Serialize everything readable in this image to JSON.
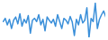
{
  "chart_data": {
    "type": "line",
    "color": "#3a8fd9",
    "x": [
      1,
      2,
      3,
      4,
      5,
      6,
      7,
      8,
      9,
      10,
      11,
      12,
      13,
      14,
      15,
      16,
      17,
      18,
      19,
      20,
      21,
      22,
      23,
      24,
      25,
      26,
      27,
      28,
      29,
      30,
      31,
      32,
      33,
      34,
      35,
      36,
      37,
      38,
      39,
      40,
      41,
      42,
      43,
      44,
      45,
      46,
      47,
      48,
      49,
      50
    ],
    "values": [
      55,
      62,
      48,
      60,
      40,
      58,
      65,
      50,
      72,
      45,
      60,
      52,
      68,
      30,
      58,
      62,
      55,
      70,
      48,
      60,
      35,
      65,
      58,
      52,
      60,
      45,
      70,
      55,
      40,
      62,
      58,
      50,
      66,
      54,
      25,
      60,
      48,
      70,
      52,
      58,
      85,
      20,
      62,
      55,
      95,
      40,
      60,
      70,
      78,
      65
    ],
    "xlim": [
      1,
      50
    ],
    "ylim": [
      20,
      95
    ],
    "grid": false,
    "tick_labels": false
  }
}
